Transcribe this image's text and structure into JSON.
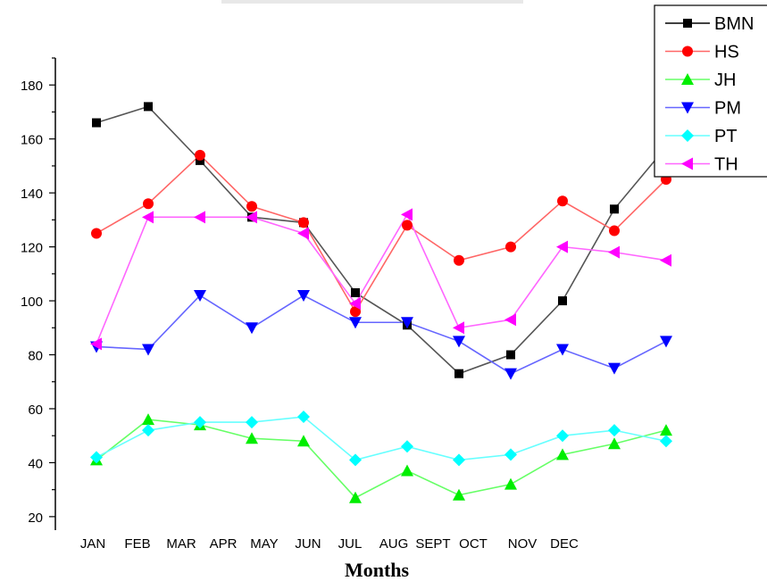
{
  "chart_data": {
    "type": "line",
    "title": "",
    "xlabel": "Months",
    "ylabel": "",
    "categories": [
      "JAN",
      "FEB",
      "MAR",
      "APR",
      "MAY",
      "JUN",
      "JUL",
      "AUG",
      "SEPT",
      "OCT",
      "NOV",
      "DEC"
    ],
    "x_tick_labels": [
      "JAN",
      "FEB",
      "MAR",
      "APR",
      "MAY",
      "JUN",
      "JUL",
      "AUG",
      "SEPT",
      "OCT",
      "NOV",
      "DEC"
    ],
    "ylim": [
      15,
      190
    ],
    "y_ticks": [
      20,
      40,
      60,
      80,
      100,
      120,
      140,
      160,
      180
    ],
    "grid": false,
    "legend_position": "top-right",
    "series": [
      {
        "name": "BMN",
        "color": "#000000",
        "line_color": "#555555",
        "marker": "square",
        "values": [
          166,
          172,
          152,
          131,
          129,
          103,
          91,
          73,
          80,
          100,
          134,
          157
        ]
      },
      {
        "name": "HS",
        "color": "#ff0000",
        "line_color": "#ff6666",
        "marker": "circle",
        "values": [
          125,
          136,
          154,
          135,
          129,
          96,
          128,
          115,
          120,
          137,
          126,
          145
        ]
      },
      {
        "name": "JH",
        "color": "#00ee00",
        "line_color": "#66ff66",
        "marker": "triangle-up",
        "values": [
          41,
          56,
          54,
          49,
          48,
          27,
          37,
          28,
          32,
          43,
          47,
          52
        ]
      },
      {
        "name": "PM",
        "color": "#0000ff",
        "line_color": "#6666ff",
        "marker": "triangle-down",
        "values": [
          83,
          82,
          102,
          90,
          102,
          92,
          92,
          85,
          73,
          82,
          75,
          85
        ]
      },
      {
        "name": "PT",
        "color": "#00ffff",
        "line_color": "#66ffff",
        "marker": "diamond",
        "values": [
          42,
          52,
          55,
          55,
          57,
          41,
          46,
          41,
          43,
          50,
          52,
          48
        ]
      },
      {
        "name": "TH",
        "color": "#ff00ff",
        "line_color": "#ff66ff",
        "marker": "triangle-left",
        "values": [
          84,
          131,
          131,
          131,
          125,
          99,
          132,
          90,
          93,
          120,
          118,
          115
        ]
      }
    ]
  }
}
